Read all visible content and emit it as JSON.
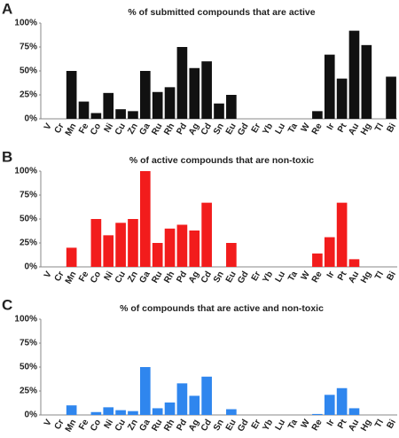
{
  "chart_data": [
    {
      "type": "bar",
      "panel": "A",
      "title": "% of submitted compounds that are active",
      "color": "#111111",
      "categories": [
        "V",
        "Cr",
        "Mn",
        "Fe",
        "Co",
        "Ni",
        "Cu",
        "Zn",
        "Ga",
        "Ru",
        "Rh",
        "Pd",
        "Ag",
        "Cd",
        "Sn",
        "Eu",
        "Gd",
        "Er",
        "Yb",
        "Lu",
        "Ta",
        "W",
        "Re",
        "Ir",
        "Pt",
        "Au",
        "Hg",
        "Tl",
        "Bi"
      ],
      "values": [
        0,
        0,
        50,
        18,
        6,
        27,
        10,
        8,
        50,
        28,
        33,
        75,
        53,
        60,
        16,
        25,
        0,
        0,
        0,
        0,
        0,
        0,
        8,
        67,
        42,
        92,
        77,
        0,
        44
      ],
      "ylim": [
        0,
        100
      ],
      "yticks": [
        {
          "value": 0,
          "label": "0%"
        },
        {
          "value": 25,
          "label": "25%"
        },
        {
          "value": 50,
          "label": "50%"
        },
        {
          "value": 75,
          "label": "75%"
        },
        {
          "value": 100,
          "label": "100%"
        }
      ]
    },
    {
      "type": "bar",
      "panel": "B",
      "title": "% of active compounds that are non-toxic",
      "color": "#f21c1c",
      "categories": [
        "V",
        "Cr",
        "Mn",
        "Fe",
        "Co",
        "Ni",
        "Cu",
        "Zn",
        "Ga",
        "Ru",
        "Rh",
        "Pd",
        "Ag",
        "Cd",
        "Sn",
        "Eu",
        "Gd",
        "Er",
        "Yb",
        "Lu",
        "Ta",
        "W",
        "Re",
        "Ir",
        "Pt",
        "Au",
        "Hg",
        "Tl",
        "Bi"
      ],
      "values": [
        0,
        0,
        20,
        0,
        50,
        33,
        46,
        50,
        100,
        25,
        40,
        44,
        38,
        67,
        0,
        25,
        0,
        0,
        0,
        0,
        0,
        0,
        14,
        31,
        67,
        8,
        0,
        0,
        0
      ],
      "ylim": [
        0,
        100
      ],
      "yticks": [
        {
          "value": 0,
          "label": "0%"
        },
        {
          "value": 25,
          "label": "25%"
        },
        {
          "value": 50,
          "label": "50%"
        },
        {
          "value": 75,
          "label": "75%"
        },
        {
          "value": 100,
          "label": "100%"
        }
      ]
    },
    {
      "type": "bar",
      "panel": "C",
      "title": "% of compounds that are active and non-toxic",
      "color": "#2f86ee",
      "categories": [
        "V",
        "Cr",
        "Mn",
        "Fe",
        "Co",
        "Ni",
        "Cu",
        "Zn",
        "Ga",
        "Ru",
        "Rh",
        "Pd",
        "Ag",
        "Cd",
        "Sn",
        "Eu",
        "Gd",
        "Er",
        "Yb",
        "Lu",
        "Ta",
        "W",
        "Re",
        "Ir",
        "Pt",
        "Au",
        "Hg",
        "Tl",
        "Bi"
      ],
      "values": [
        0,
        0,
        10,
        0,
        3,
        8,
        5,
        4,
        50,
        7,
        13,
        33,
        20,
        40,
        0,
        6,
        0,
        0,
        0,
        0,
        0,
        0,
        1,
        21,
        28,
        7,
        0,
        0,
        0
      ],
      "ylim": [
        0,
        100
      ],
      "yticks": [
        {
          "value": 0,
          "label": "0%"
        },
        {
          "value": 25,
          "label": "25%"
        },
        {
          "value": 50,
          "label": "50%"
        },
        {
          "value": 75,
          "label": "75%"
        },
        {
          "value": 100,
          "label": "100%"
        }
      ]
    }
  ]
}
